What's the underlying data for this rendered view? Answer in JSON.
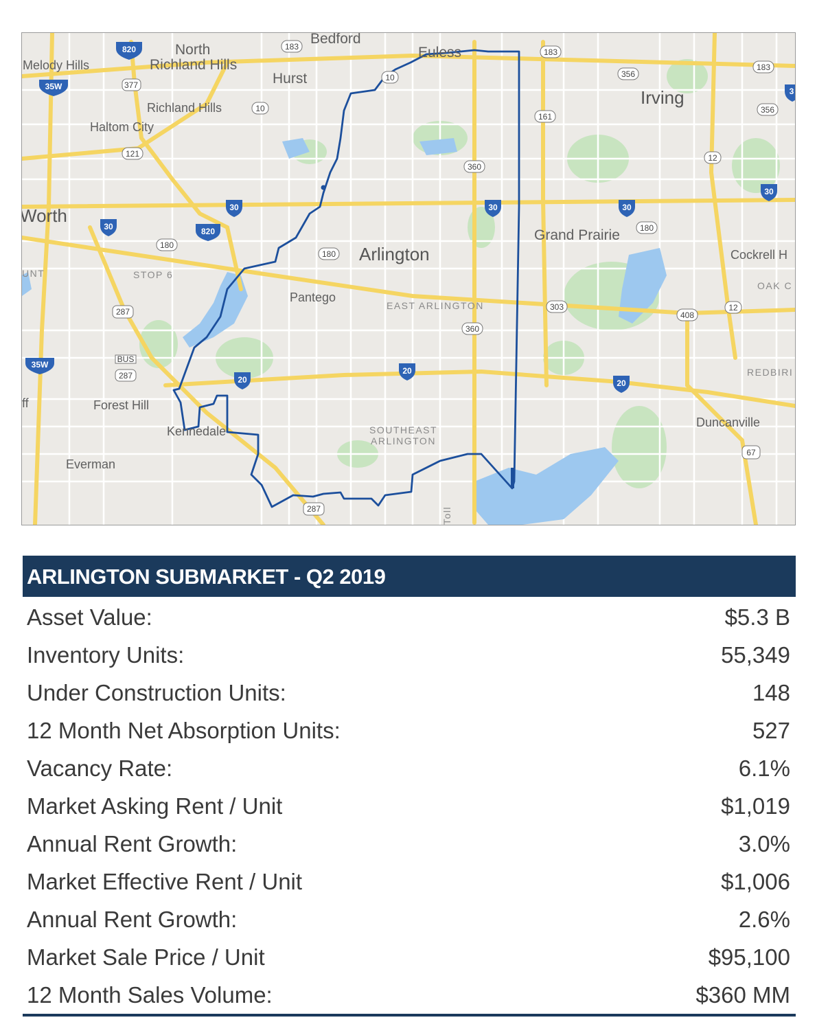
{
  "map": {
    "labels": {
      "bedford": "Bedford",
      "north_richland_hills_1": "North",
      "north_richland_hills_2": "Richland Hills",
      "melody_hills": "Melody Hills",
      "hurst": "Hurst",
      "euless": "Euless",
      "irving": "Irving",
      "richland_hills": "Richland Hills",
      "haltom_city": "Haltom City",
      "worth": "Worth",
      "arlington": "Arlington",
      "grand_prairie": "Grand Prairie",
      "cockrell_hill": "Cockrell H",
      "stop6": "STOP 6",
      "unt": "UNT",
      "oak_cliff": "OAK C",
      "pantego": "Pantego",
      "east_arlington": "EAST ARLINGTON",
      "redbird": "REDBIRI",
      "forest_hill": "Forest Hill",
      "ff": "ff",
      "kennedale": "Kennedale",
      "southeast_arlington_1": "SOUTHEAST",
      "southeast_arlington_2": "ARLINGTON",
      "duncanville": "Duncanville",
      "everman": "Everman",
      "toll": "Toll"
    },
    "shields": {
      "i820_top": "820",
      "i820_mid": "820",
      "i35w_top": "35W",
      "i35w_bottom": "35W",
      "i30_a": "30",
      "i30_b": "30",
      "i30_c": "30",
      "i30_d": "30",
      "i30_e": "30",
      "i20_a": "20",
      "i20_b": "20",
      "i20_c": "20",
      "us377": "377",
      "us287_a": "287",
      "us287_bus": "287",
      "us287_b": "287",
      "bus_label": "BUS",
      "s183_a": "183",
      "s183_b": "183",
      "s183_c": "183",
      "s356_a": "356",
      "s356_b": "356",
      "s10_a": "10",
      "s10_b": "10",
      "s121": "121",
      "s161": "161",
      "s360_a": "360",
      "s360_b": "360",
      "s180_a": "180",
      "s180_b": "180",
      "s180_c": "180",
      "s303": "303",
      "s408": "408",
      "s12_a": "12",
      "s12_b": "12",
      "us67": "67",
      "i3_partial": "3"
    },
    "colors": {
      "boundary": "#1c4f9c",
      "water": "#9dc8ef",
      "park": "#c8e4c0",
      "highway": "#f5d562",
      "interstate_shield": "#2e63b5"
    }
  },
  "stats": {
    "title": "ARLINGTON SUBMARKET - Q2 2019",
    "rows": [
      {
        "label": "Asset Value:",
        "value": "$5.3 B"
      },
      {
        "label": "Inventory Units:",
        "value": "55,349"
      },
      {
        "label": "Under Construction Units:",
        "value": "148"
      },
      {
        "label": "12 Month Net Absorption Units:",
        "value": "527"
      },
      {
        "label": "Vacancy Rate:",
        "value": "6.1%"
      },
      {
        "label": "Market Asking Rent / Unit",
        "value": "$1,019"
      },
      {
        "label": "Annual Rent Growth:",
        "value": "3.0%"
      },
      {
        "label": "Market Effective Rent / Unit",
        "value": "$1,006"
      },
      {
        "label": "Annual Rent Growth:",
        "value": "2.6%"
      },
      {
        "label": "Market Sale Price / Unit",
        "value": "$95,100"
      },
      {
        "label": "12 Month Sales Volume:",
        "value": "$360 MM"
      }
    ]
  }
}
